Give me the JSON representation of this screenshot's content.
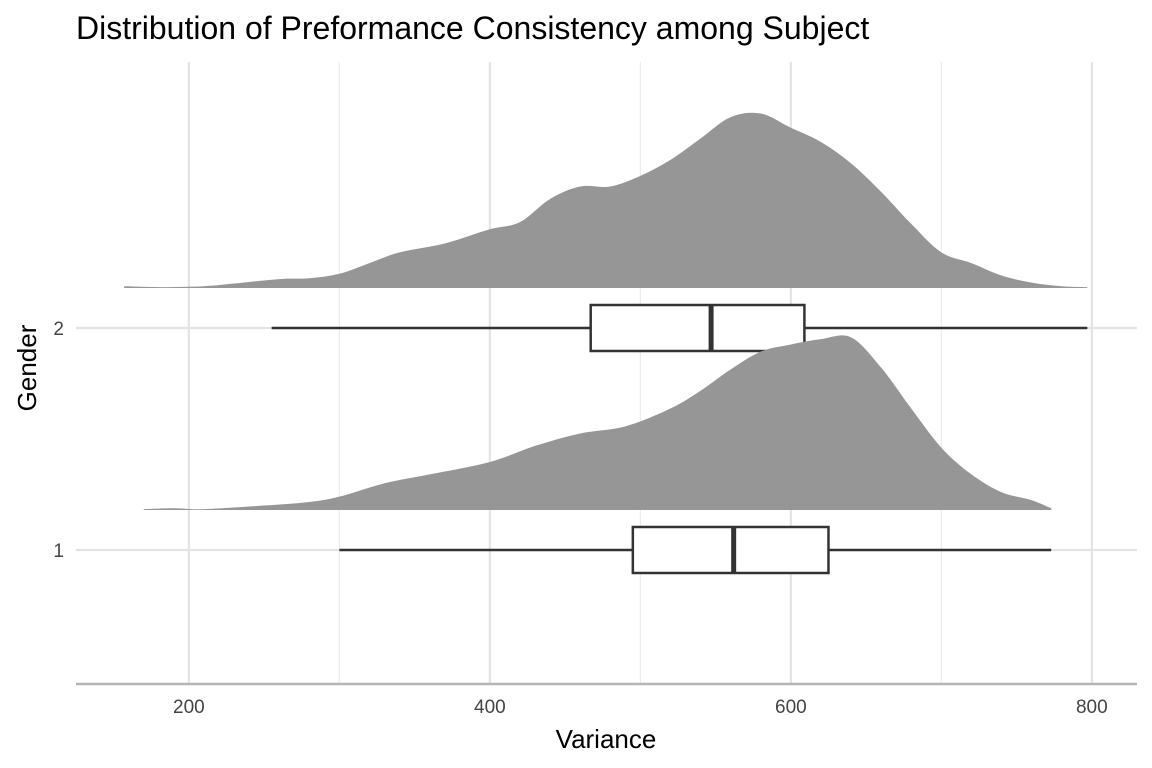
{
  "chart_data": {
    "type": "ridgeline-boxplot",
    "title": "Distribution of Preformance Consistency among Subject",
    "xlabel": "Variance",
    "ylabel": "Gender",
    "xlim": [
      125,
      830
    ],
    "x_ticks": [
      200,
      400,
      600,
      800
    ],
    "grid": true,
    "fill_color": "#969696",
    "box_color": "#333333",
    "series": [
      {
        "name": "1",
        "box": {
          "min": 300,
          "q1": 495,
          "median": 562,
          "q3": 625,
          "max": 773
        },
        "density_x": [
          170,
          190,
          210,
          250,
          280,
          300,
          330,
          360,
          400,
          430,
          460,
          490,
          520,
          540,
          560,
          580,
          600,
          620,
          640,
          660,
          680,
          700,
          720,
          740,
          760,
          773
        ],
        "density_y": [
          0.005,
          0.01,
          0.005,
          0.025,
          0.045,
          0.075,
          0.15,
          0.2,
          0.27,
          0.36,
          0.43,
          0.47,
          0.57,
          0.67,
          0.79,
          0.89,
          0.93,
          0.96,
          0.97,
          0.8,
          0.57,
          0.35,
          0.2,
          0.1,
          0.055,
          0.01
        ]
      },
      {
        "name": "2",
        "box": {
          "min": 255,
          "q1": 467,
          "median": 547,
          "q3": 609,
          "max": 797
        },
        "density_x": [
          157,
          180,
          210,
          230,
          260,
          280,
          300,
          320,
          340,
          370,
          400,
          420,
          440,
          460,
          480,
          500,
          520,
          540,
          560,
          580,
          600,
          620,
          640,
          660,
          680,
          700,
          720,
          740,
          760,
          780,
          797
        ],
        "density_y": [
          0.01,
          0.005,
          0.01,
          0.025,
          0.05,
          0.055,
          0.08,
          0.14,
          0.2,
          0.25,
          0.33,
          0.37,
          0.5,
          0.57,
          0.57,
          0.63,
          0.72,
          0.84,
          0.96,
          0.98,
          0.9,
          0.82,
          0.7,
          0.54,
          0.36,
          0.2,
          0.14,
          0.07,
          0.03,
          0.01,
          0.005
        ]
      }
    ]
  }
}
